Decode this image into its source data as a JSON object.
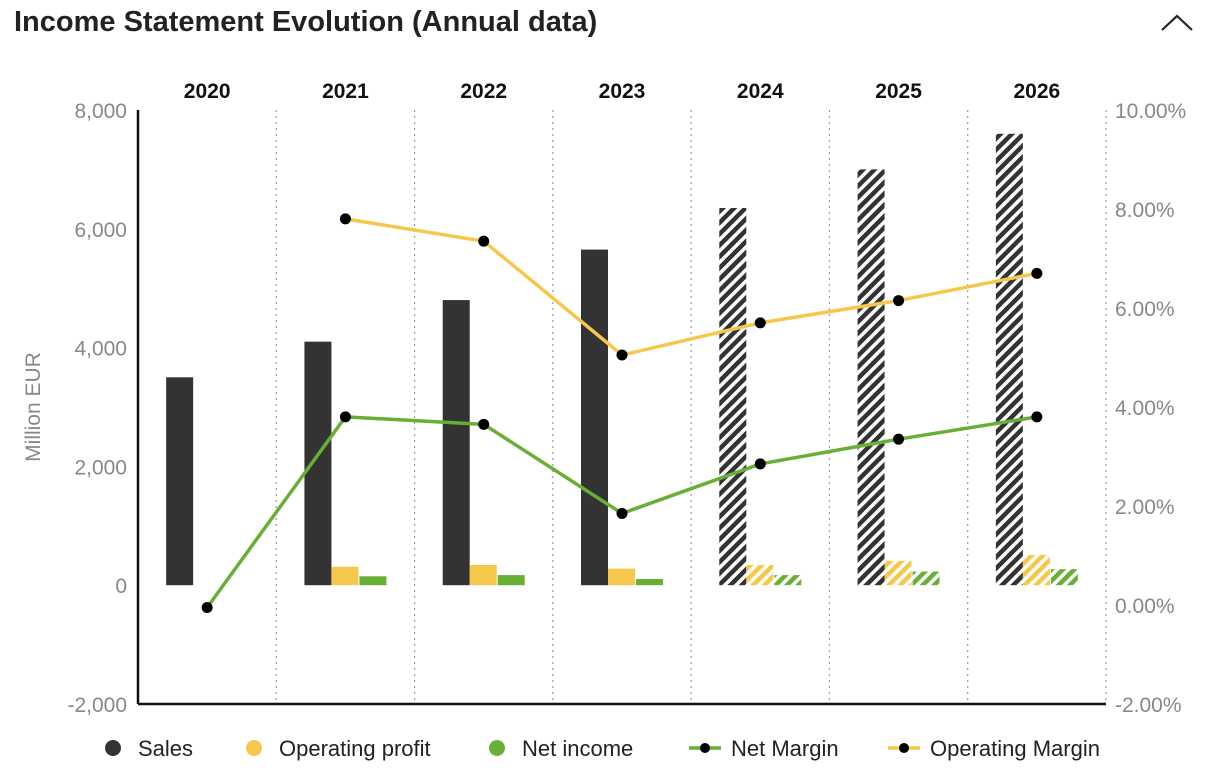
{
  "header": {
    "title": "Income Statement Evolution (Annual data)",
    "collapse_icon": "chevron-up-icon"
  },
  "chart_data": {
    "type": "bar",
    "categories": [
      "2020",
      "2021",
      "2022",
      "2023",
      "2024",
      "2025",
      "2026"
    ],
    "estimated_from": "2024",
    "ylabel": "Million EUR",
    "ylim": [
      -2000,
      8000
    ],
    "y_ticks": [
      -2000,
      0,
      2000,
      4000,
      6000,
      8000
    ],
    "y_tick_labels": [
      "-2,000",
      "0",
      "2,000",
      "4,000",
      "6,000",
      "8,000"
    ],
    "y2lim": [
      -2,
      10
    ],
    "y2_ticks": [
      -2,
      0,
      2,
      4,
      6,
      8,
      10
    ],
    "y2_tick_labels": [
      "-2.00%",
      "0.00%",
      "2.00%",
      "4.00%",
      "6.00%",
      "8.00%",
      "10.00%"
    ],
    "series": [
      {
        "name": "Sales",
        "kind": "bar",
        "color": "#333333",
        "values": [
          3500,
          4100,
          4800,
          5650,
          6350,
          7000,
          7600
        ]
      },
      {
        "name": "Operating profit",
        "kind": "bar",
        "color": "#f5c84b",
        "values": [
          null,
          310,
          340,
          280,
          340,
          410,
          510
        ]
      },
      {
        "name": "Net income",
        "kind": "bar",
        "color": "#6aaf35",
        "values": [
          null,
          150,
          170,
          105,
          170,
          230,
          270
        ]
      },
      {
        "name": "Net Margin",
        "kind": "line",
        "axis": "right",
        "color": "#6aaf35",
        "values": [
          -0.05,
          3.8,
          3.65,
          1.85,
          2.85,
          3.35,
          3.8
        ]
      },
      {
        "name": "Operating Margin",
        "kind": "line",
        "axis": "right",
        "color": "#f5c84b",
        "values": [
          null,
          7.8,
          7.35,
          5.05,
          5.7,
          6.15,
          6.7
        ]
      }
    ],
    "legend_position": "bottom",
    "grid": "vertical dotted category separators"
  }
}
